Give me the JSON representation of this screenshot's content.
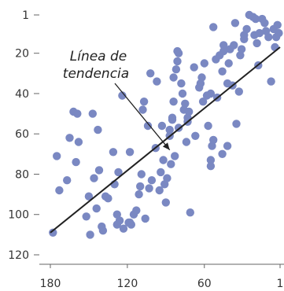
{
  "chart_data": {
    "type": "scatter",
    "title": "",
    "xlabel": "",
    "ylabel": "",
    "x_reversed": true,
    "y_reversed": true,
    "xlim": [
      180,
      1
    ],
    "ylim": [
      1,
      120
    ],
    "x_ticks": [
      180,
      120,
      60,
      1
    ],
    "y_ticks": [
      1,
      20,
      40,
      60,
      80,
      100,
      120
    ],
    "grid": false,
    "point_color": "#7a88c2",
    "line_color": "#222222",
    "axis_color": "#666666",
    "annotation": {
      "lines": [
        "Línea de",
        "tendencia"
      ],
      "points_to": [
        87,
        68
      ]
    },
    "trend_line": {
      "from": [
        180,
        109
      ],
      "to": [
        1,
        17
      ]
    },
    "points": [
      [
        178,
        109
      ],
      [
        175,
        71
      ],
      [
        173,
        88
      ],
      [
        167,
        83
      ],
      [
        165,
        62
      ],
      [
        162,
        49
      ],
      [
        160,
        74
      ],
      [
        159,
        50
      ],
      [
        158,
        64
      ],
      [
        152,
        101
      ],
      [
        150,
        91
      ],
      [
        149,
        110
      ],
      [
        147,
        50
      ],
      [
        146,
        82
      ],
      [
        144,
        97
      ],
      [
        143,
        58
      ],
      [
        142,
        78
      ],
      [
        140,
        106
      ],
      [
        139,
        108
      ],
      [
        137,
        91
      ],
      [
        135,
        92
      ],
      [
        131,
        69
      ],
      [
        130,
        85
      ],
      [
        128,
        100
      ],
      [
        128,
        105
      ],
      [
        127,
        79
      ],
      [
        126,
        103
      ],
      [
        124,
        41
      ],
      [
        123,
        107
      ],
      [
        119,
        104
      ],
      [
        118,
        69
      ],
      [
        118,
        104
      ],
      [
        117,
        105
      ],
      [
        115,
        100
      ],
      [
        113,
        98
      ],
      [
        111,
        90
      ],
      [
        110,
        86
      ],
      [
        109,
        80
      ],
      [
        108,
        48
      ],
      [
        107,
        44
      ],
      [
        106,
        102
      ],
      [
        104,
        56
      ],
      [
        103,
        87
      ],
      [
        102,
        30
      ],
      [
        101,
        83
      ],
      [
        98,
        67
      ],
      [
        97,
        34
      ],
      [
        95,
        88
      ],
      [
        94,
        79
      ],
      [
        93,
        56
      ],
      [
        92,
        73
      ],
      [
        91,
        85
      ],
      [
        90,
        94
      ],
      [
        89,
        82
      ],
      [
        87,
        58
      ],
      [
        87,
        61
      ],
      [
        86,
        75
      ],
      [
        85,
        53
      ],
      [
        85,
        52
      ],
      [
        84,
        44
      ],
      [
        84,
        32
      ],
      [
        83,
        71
      ],
      [
        82,
        28
      ],
      [
        81,
        24
      ],
      [
        81,
        19
      ],
      [
        80,
        57
      ],
      [
        80,
        20
      ],
      [
        78,
        35
      ],
      [
        77,
        40
      ],
      [
        76,
        48
      ],
      [
        75,
        45
      ],
      [
        74,
        64
      ],
      [
        73,
        54
      ],
      [
        73,
        52
      ],
      [
        72,
        49
      ],
      [
        71,
        99
      ],
      [
        68,
        27
      ],
      [
        67,
        61
      ],
      [
        64,
        37
      ],
      [
        63,
        35
      ],
      [
        62,
        32
      ],
      [
        61,
        44
      ],
      [
        60,
        25
      ],
      [
        58,
        41
      ],
      [
        57,
        56
      ],
      [
        55,
        76
      ],
      [
        55,
        73
      ],
      [
        55,
        40
      ],
      [
        54,
        66
      ],
      [
        53,
        63
      ],
      [
        53,
        7
      ],
      [
        51,
        23
      ],
      [
        50,
        42
      ],
      [
        48,
        21
      ],
      [
        46,
        70
      ],
      [
        46,
        29
      ],
      [
        45,
        19
      ],
      [
        45,
        16
      ],
      [
        42,
        66
      ],
      [
        42,
        35
      ],
      [
        41,
        25
      ],
      [
        40,
        18
      ],
      [
        38,
        36
      ],
      [
        37,
        16
      ],
      [
        36,
        5
      ],
      [
        35,
        55
      ],
      [
        33,
        39
      ],
      [
        32,
        21
      ],
      [
        31,
        18
      ],
      [
        29,
        11
      ],
      [
        29,
        13
      ],
      [
        27,
        8
      ],
      [
        25,
        1
      ],
      [
        22,
        2
      ],
      [
        21,
        11
      ],
      [
        20,
        3
      ],
      [
        19,
        15
      ],
      [
        18,
        26
      ],
      [
        17,
        10
      ],
      [
        15,
        3
      ],
      [
        13,
        5
      ],
      [
        12,
        9
      ],
      [
        10,
        12
      ],
      [
        8,
        34
      ],
      [
        6,
        8
      ],
      [
        5,
        17
      ],
      [
        4,
        12
      ],
      [
        3,
        6
      ],
      [
        2,
        10
      ]
    ]
  }
}
